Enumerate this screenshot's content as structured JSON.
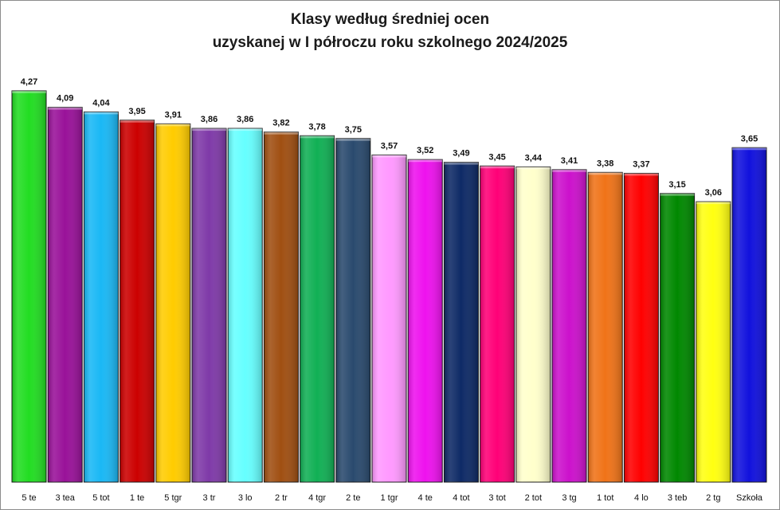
{
  "chart_data": {
    "type": "bar",
    "title": "Klasy według średniej ocen",
    "subtitle": "uzyskanej w I półroczu roku szkolnego 2024/2025",
    "xlabel": "",
    "ylabel": "",
    "ylim": [
      0,
      4.5
    ],
    "grid": false,
    "legend": "none",
    "categories": [
      "5 te",
      "3 tea",
      "5 tot",
      "1 te",
      "5 tgr",
      "3 tr",
      "3 lo",
      "2 tr",
      "4 tgr",
      "2 te",
      "1 tgr",
      "4 te",
      "4 tot",
      "3 tot",
      "2 tot",
      "3 tg",
      "1 tot",
      "4 lo",
      "3 teb",
      "2 tg",
      "Szkoła"
    ],
    "values": [
      4.27,
      4.09,
      4.04,
      3.95,
      3.91,
      3.86,
      3.86,
      3.82,
      3.78,
      3.75,
      3.57,
      3.52,
      3.49,
      3.45,
      3.44,
      3.41,
      3.38,
      3.37,
      3.15,
      3.06,
      3.65
    ],
    "value_labels": [
      "4,27",
      "4,09",
      "4,04",
      "3,95",
      "3,91",
      "3,86",
      "3,86",
      "3,82",
      "3,78",
      "3,75",
      "3,57",
      "3,52",
      "3,49",
      "3,45",
      "3,44",
      "3,41",
      "3,38",
      "3,37",
      "3,15",
      "3,06",
      "3,65"
    ],
    "colors": [
      "#22dd22",
      "#991199",
      "#1ab8f5",
      "#cc0000",
      "#ffcc00",
      "#7f3aa8",
      "#66ffff",
      "#a04f12",
      "#11b055",
      "#2a4a6e",
      "#ff99ff",
      "#ee11ee",
      "#0e2a66",
      "#ff0077",
      "#ffffcc",
      "#cc11cc",
      "#f07318",
      "#ff0000",
      "#008800",
      "#ffff11",
      "#1111dd"
    ]
  }
}
